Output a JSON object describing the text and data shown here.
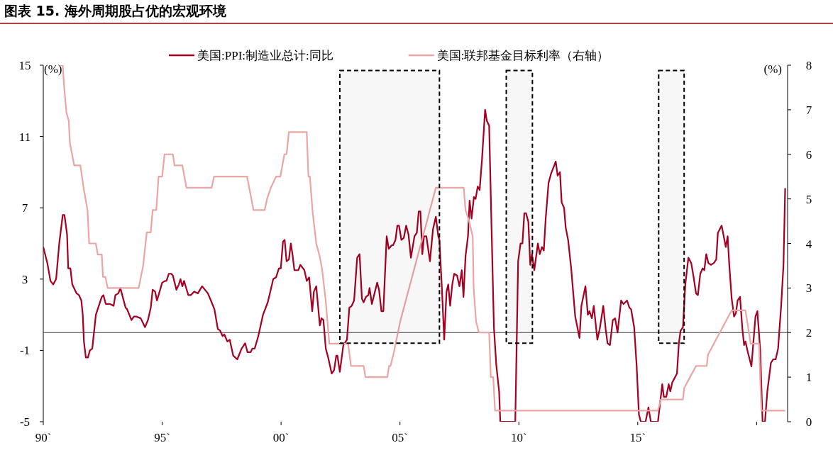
{
  "chart_data": {
    "type": "line",
    "title": "图表 15. 海外周期股占优的宏观环境",
    "ylabel": "(%)",
    "y2label": "(%)",
    "xlim": [
      "1990",
      "2021-04-21"
    ],
    "xticks": [
      {
        "value": "1990",
        "label": "90`"
      },
      {
        "value": "1995",
        "label": "95`"
      },
      {
        "value": "2000",
        "label": "00`"
      },
      {
        "value": "2005",
        "label": "05`"
      },
      {
        "value": "2010",
        "label": "10`"
      },
      {
        "value": "2015",
        "label": "15`"
      },
      {
        "value": "2020",
        "label": null
      }
    ],
    "ylim": [
      -5,
      15
    ],
    "yticks": [
      -5,
      -1,
      3,
      7,
      11,
      15
    ],
    "y2lim": [
      0,
      8
    ],
    "y2ticks": [
      0,
      1,
      2,
      3,
      4,
      5,
      6,
      7,
      8
    ],
    "legend": "top",
    "ref_lines": [
      {
        "axis": "y",
        "value": 0,
        "color": "#404040"
      }
    ],
    "bands": [
      {
        "axis": "x",
        "from": "2002-06-22",
        "to": "2006-08-30",
        "color": "#000000"
      },
      {
        "axis": "x",
        "from": "2009-06-22",
        "to": "2010-07-28",
        "color": "#000000"
      },
      {
        "axis": "x",
        "from": "2015-11-18",
        "to": "2016-12-14",
        "color": "#000000"
      }
    ],
    "series": [
      {
        "name": "美国:PPI:制造业总计:同比",
        "color": "#a50021",
        "x": [
          "1990-01-01",
          "1990-03-04",
          "1990-04-21",
          "1990-06-03",
          "1990-07-17",
          "1990-09-03",
          "1990-10-27",
          "1990-11-22",
          "1991-01-01",
          "1991-01-19",
          "1991-02-21",
          "1991-03-22",
          "1991-05-27",
          "1991-07-03",
          "1991-08-08",
          "1991-08-30",
          "1991-09-17",
          "1991-10-16",
          "1991-11-18",
          "1991-12-17",
          "1992-01-23",
          "1992-03-19",
          "1992-06-18",
          "1992-07-13",
          "1992-08-19",
          "1992-10-24",
          "1992-12-17",
          "1993-01-12",
          "1993-02-28",
          "1993-03-30",
          "1993-06-18",
          "1993-07-13",
          "1993-09-17",
          "1993-10-24",
          "1993-11-29",
          "1994-02-06",
          "1994-04-13",
          "1994-05-27",
          "1994-07-10",
          "1994-08-08",
          "1994-09-14",
          "1994-10-13",
          "1994-11-07",
          "1995-01-01",
          "1995-02-14",
          "1995-03-08",
          "1995-04-13",
          "1995-05-20",
          "1995-06-14",
          "1995-08-08",
          "1995-09-14",
          "1995-10-09",
          "1995-11-07",
          "1995-12-03",
          "1996-02-06",
          "1996-03-15",
          "1996-05-09",
          "1996-07-03",
          "1996-09-06",
          "1996-10-20",
          "1996-12-03",
          "1997-01-19",
          "1997-03-15",
          "1997-05-05",
          "1997-06-11",
          "1997-07-17",
          "1997-08-12",
          "1997-09-28",
          "1997-11-04",
          "1997-12-28",
          "1998-02-28",
          "1998-05-05",
          "1998-06-29",
          "1998-08-04",
          "1998-09-21",
          "1998-10-16",
          "1998-11-22",
          "1999-01-16",
          "1999-03-30",
          "1999-06-11",
          "1999-09-03",
          "1999-10-16",
          "1999-11-29",
          "1999-12-28",
          "2000-01-30",
          "2000-02-25",
          "2000-03-26",
          "2000-05-01",
          "2000-05-31",
          "2000-06-25",
          "2000-07-24",
          "2000-09-24",
          "2000-10-24",
          "2000-12-25",
          "2001-01-30",
          "2001-03-08",
          "2001-04-24",
          "2001-05-20",
          "2001-06-25",
          "2001-08-19",
          "2001-09-14",
          "2001-10-13",
          "2001-11-18",
          "2001-12-25",
          "2002-02-17",
          "2002-03-26",
          "2002-04-28",
          "2002-05-16",
          "2002-06-22",
          "2002-08-15",
          "2002-10-09",
          "2002-11-15",
          "2002-12-21",
          "2003-01-27",
          "2003-03-15",
          "2003-04-21",
          "2003-05-27",
          "2003-06-22",
          "2003-07-28",
          "2003-09-03",
          "2003-09-21",
          "2003-10-27",
          "2004-01-16",
          "2004-02-14",
          "2004-03-22",
          "2004-04-21",
          "2004-06-11",
          "2004-07-13",
          "2004-08-30",
          "2004-09-17",
          "2004-10-24",
          "2004-11-22",
          "2004-12-17",
          "2005-01-23",
          "2005-02-28",
          "2005-04-06",
          "2005-05-12",
          "2005-06-18",
          "2005-08-12",
          "2005-09-17",
          "2005-10-16",
          "2005-11-11",
          "2005-12-10",
          "2006-01-05",
          "2006-02-10",
          "2006-04-06",
          "2006-05-23",
          "2006-07-06",
          "2006-08-12",
          "2006-08-30",
          "2006-10-05",
          "2006-11-11",
          "2006-12-17",
          "2007-01-12",
          "2007-02-10",
          "2007-03-15",
          "2007-04-13",
          "2007-05-27",
          "2007-07-03",
          "2007-08-08",
          "2007-09-03",
          "2007-10-05",
          "2007-11-11",
          "2007-12-06",
          "2008-01-05",
          "2008-02-10",
          "2008-03-08",
          "2008-04-10",
          "2008-05-09",
          "2008-06-14",
          "2008-08-01",
          "2008-08-26",
          "2008-10-02",
          "2008-11-07",
          "2008-12-14",
          "2009-01-19",
          "2009-03-04",
          "2009-03-22",
          "2009-11-07",
          "2009-12-21",
          "2010-01-27",
          "2010-02-25",
          "2010-03-26",
          "2010-04-21",
          "2010-05-27",
          "2010-06-25",
          "2010-07-21",
          "2010-08-26",
          "2010-10-20",
          "2010-11-18",
          "2010-12-21",
          "2011-01-19",
          "2011-02-17",
          "2011-04-02",
          "2011-05-09",
          "2011-07-21",
          "2011-08-19",
          "2011-09-24",
          "2011-10-20",
          "2011-11-26",
          "2011-12-21",
          "2012-01-27",
          "2012-03-15",
          "2012-05-16",
          "2012-07-21",
          "2012-08-19",
          "2012-10-20",
          "2012-11-26",
          "2012-12-21",
          "2013-01-27",
          "2013-02-25",
          "2013-04-21",
          "2013-05-27",
          "2013-07-21",
          "2013-08-26",
          "2013-09-24",
          "2013-10-31",
          "2013-12-14",
          "2014-01-19",
          "2014-02-25",
          "2014-04-21",
          "2014-05-27",
          "2014-07-21",
          "2014-08-26",
          "2014-09-21",
          "2014-11-07",
          "2014-12-14",
          "2015-01-19",
          "2015-02-17",
          "2015-05-01",
          "2015-06-14",
          "2015-07-21",
          "2015-11-07",
          "2016-01-12",
          "2016-02-06",
          "2016-03-15",
          "2016-04-21",
          "2016-05-16",
          "2016-06-14",
          "2016-07-28",
          "2016-08-26",
          "2016-09-24",
          "2016-10-20",
          "2016-11-26",
          "2017-01-01",
          "2017-02-17",
          "2017-04-02",
          "2017-05-09",
          "2017-06-14",
          "2017-07-13",
          "2017-08-19",
          "2017-09-24",
          "2017-10-20",
          "2017-11-18",
          "2017-12-21",
          "2018-01-27",
          "2018-03-15",
          "2018-04-21",
          "2018-05-16",
          "2018-07-13",
          "2018-09-14",
          "2018-10-13",
          "2018-11-07",
          "2018-12-14",
          "2019-01-19",
          "2019-02-17",
          "2019-03-15",
          "2019-04-21",
          "2019-05-27",
          "2019-06-22",
          "2019-07-13",
          "2019-08-19",
          "2019-10-13",
          "2019-12-14",
          "2020-01-12",
          "2020-02-25",
          "2020-04-02",
          "2020-05-09",
          "2020-06-14",
          "2020-08-08",
          "2020-09-14",
          "2020-10-20",
          "2020-11-26",
          "2021-01-12",
          "2021-02-17",
          "2021-03-15"
        ],
        "values": [
          4.8,
          3.9,
          2.9,
          2.7,
          3.0,
          5.0,
          6.6,
          6.6,
          5.5,
          3.6,
          3.6,
          2.7,
          2.2,
          2.1,
          1.8,
          1.0,
          -0.5,
          -1.4,
          -1.4,
          -1.0,
          -0.9,
          1.0,
          2.0,
          2.1,
          1.6,
          1.6,
          1.5,
          2.1,
          2.2,
          2.5,
          1.4,
          1.3,
          0.7,
          0.9,
          0.9,
          0.8,
          0.3,
          0.7,
          1.4,
          2.4,
          2.3,
          1.8,
          2.1,
          2.8,
          2.9,
          2.9,
          3.3,
          3.3,
          3.2,
          2.4,
          2.7,
          3.0,
          2.6,
          2.9,
          2.1,
          2.1,
          2.3,
          2.2,
          2.6,
          2.4,
          2.2,
          1.8,
          1.3,
          0.2,
          0.1,
          -0.2,
          -0.1,
          -0.5,
          -0.4,
          -1.3,
          -1.5,
          -0.9,
          -0.6,
          -1.1,
          -1.1,
          -0.9,
          -0.9,
          -0.2,
          1.0,
          1.7,
          3.0,
          3.1,
          3.6,
          3.6,
          5.1,
          5.2,
          4.0,
          4.1,
          5.0,
          4.4,
          3.5,
          3.5,
          3.8,
          3.5,
          2.9,
          3.1,
          1.2,
          2.3,
          2.6,
          0.4,
          0.8,
          0.7,
          -0.9,
          -1.4,
          -2.3,
          -2.1,
          -1.3,
          -1.3,
          -2.2,
          -0.7,
          -0.4,
          1.4,
          1.5,
          1.8,
          4.2,
          4.4,
          1.9,
          1.7,
          2.0,
          2.1,
          2.5,
          1.6,
          2.8,
          2.4,
          1.2,
          1.2,
          5.4,
          4.7,
          4.9,
          4.9,
          5.2,
          6.0,
          6.0,
          5.2,
          5.3,
          6.0,
          5.5,
          4.2,
          5.4,
          5.6,
          6.8,
          6.8,
          4.4,
          5.4,
          5.4,
          4.0,
          5.8,
          6.5,
          5.4,
          5.2,
          2.6,
          -0.4,
          2.3,
          2.7,
          1.5,
          2.7,
          3.3,
          3.2,
          2.6,
          3.5,
          2.0,
          4.3,
          5.4,
          7.4,
          6.4,
          7.6,
          7.5,
          8.2,
          8.0,
          9.7,
          12.5,
          11.9,
          11.6,
          6.0,
          0.3,
          -1.8,
          -3.3,
          -5.0,
          -5.0,
          4.0,
          5.0,
          5.0,
          6.7,
          6.7,
          6.2,
          3.8,
          4.4,
          3.5,
          5.0,
          4.4,
          4.8,
          4.6,
          6.4,
          8.4,
          8.9,
          9.6,
          8.8,
          9.0,
          7.3,
          7.0,
          5.9,
          5.2,
          3.6,
          0.9,
          -0.3,
          1.5,
          2.6,
          1.0,
          1.2,
          0.8,
          1.5,
          -0.4,
          0.2,
          1.5,
          0.2,
          -0.6,
          -0.7,
          0.7,
          0.8,
          0.0,
          1.8,
          1.6,
          1.8,
          1.4,
          1.3,
          0.3,
          -1.8,
          -4.6,
          -5.0,
          -5.0,
          -4.2,
          -5.0,
          -5.0,
          -2.9,
          -3.6,
          -3.6,
          -2.9,
          -3.3,
          -2.8,
          -2.5,
          -2.3,
          -0.6,
          0.1,
          0.3,
          2.7,
          4.2,
          3.9,
          3.1,
          2.2,
          2.1,
          3.3,
          3.6,
          3.5,
          4.4,
          3.9,
          3.8,
          3.9,
          4.1,
          5.6,
          6.0,
          4.8,
          5.4,
          3.8,
          1.9,
          0.9,
          1.1,
          1.8,
          2.0,
          0.2,
          -0.7,
          -0.5,
          -1.1,
          -1.9,
          0.9,
          1.2,
          -1.0,
          -5.0,
          -5.0,
          -3.3,
          -1.7,
          -1.5,
          -1.5,
          -0.9,
          1.5,
          3.8,
          8.1
        ]
      },
      {
        "name": "美国:联邦基金目标利率（右轴）",
        "color": "#eba5a5",
        "axis": "y2",
        "x": [
          "1990-09-21",
          "1990-10-27",
          "1990-11-15",
          "1990-12-21",
          "1991-01-27",
          "1991-02-14",
          "1991-04-21",
          "1991-07-24",
          "1991-09-17",
          "1991-11-11",
          "1991-12-06",
          "1992-03-19",
          "1992-04-17",
          "1992-06-18",
          "1992-07-06",
          "1992-08-12",
          "1992-09-17",
          "1994-01-05",
          "1994-03-15",
          "1994-05-09",
          "1994-07-10",
          "1994-08-08",
          "1994-10-02",
          "1994-11-07",
          "1995-01-01",
          "1995-02-06",
          "1995-06-14",
          "1995-07-10",
          "1995-11-07",
          "1996-01-08",
          "1997-01-30",
          "1997-03-08",
          "1998-07-28",
          "1998-11-04",
          "1999-04-24",
          "1999-05-31",
          "1999-07-28",
          "1999-10-16",
          "1999-12-21",
          "2000-02-21",
          "2000-03-26",
          "2000-05-01",
          "2001-01-30",
          "2001-02-25",
          "2001-03-19",
          "2001-05-01",
          "2001-06-25",
          "2001-08-19",
          "2001-09-24",
          "2001-11-18",
          "2002-01-12",
          "2002-10-27",
          "2002-12-10",
          "2003-06-22",
          "2003-07-21",
          "2004-06-22",
          "2004-07-17",
          "2004-08-08",
          "2004-09-21",
          "2005-01-05",
          "2005-04-06",
          "2005-07-06",
          "2005-10-05",
          "2006-01-05",
          "2006-04-06",
          "2006-07-06",
          "2007-09-06",
          "2007-10-05",
          "2007-11-29",
          "2008-01-23",
          "2008-02-06",
          "2008-03-15",
          "2008-04-28",
          "2008-10-02",
          "2008-10-27",
          "2008-12-03",
          "2009-01-01",
          "2015-11-07",
          "2015-12-21",
          "2016-11-26",
          "2016-12-14",
          "2017-03-15",
          "2017-06-14",
          "2017-11-26",
          "2017-12-14",
          "2018-03-15",
          "2018-06-14",
          "2018-09-14",
          "2018-12-14",
          "2019-07-13",
          "2019-10-02",
          "2020-02-06",
          "2020-03-15",
          "2021-03-15"
        ],
        "values": [
          8.0,
          8.0,
          7.55,
          6.95,
          6.75,
          6.25,
          5.75,
          5.75,
          5.2,
          4.75,
          4.0,
          4.0,
          3.75,
          3.75,
          3.25,
          3.25,
          3.0,
          3.0,
          3.5,
          4.25,
          4.25,
          4.75,
          4.75,
          5.5,
          5.5,
          6.0,
          6.0,
          5.75,
          5.75,
          5.25,
          5.25,
          5.5,
          5.5,
          4.75,
          4.75,
          5.0,
          5.25,
          5.5,
          5.5,
          6.0,
          6.0,
          6.5,
          6.5,
          5.5,
          5.5,
          4.7,
          4.0,
          3.7,
          3.4,
          2.7,
          1.75,
          1.75,
          1.25,
          1.25,
          1.0,
          1.0,
          1.25,
          1.25,
          1.5,
          2.25,
          2.75,
          3.25,
          3.75,
          4.25,
          4.75,
          5.25,
          5.25,
          4.75,
          4.5,
          4.15,
          3.0,
          2.25,
          2.0,
          2.0,
          1.0,
          1.0,
          0.25,
          0.25,
          0.5,
          0.5,
          0.75,
          1.0,
          1.25,
          1.25,
          1.5,
          1.75,
          2.0,
          2.25,
          2.5,
          2.5,
          1.75,
          1.75,
          0.25,
          0.25
        ]
      }
    ]
  }
}
